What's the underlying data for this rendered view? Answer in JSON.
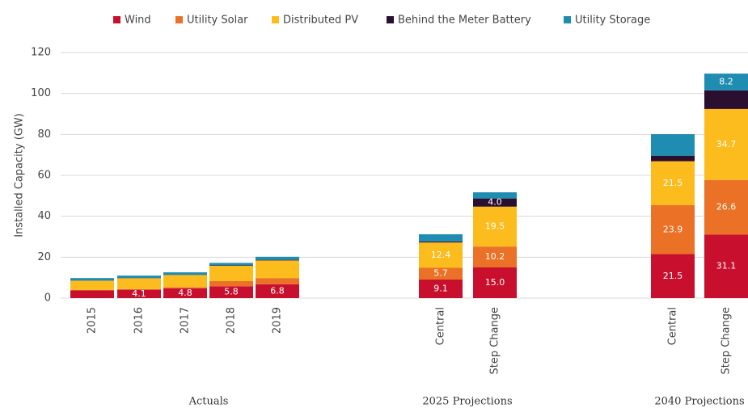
{
  "chart_data": {
    "type": "stacked_bar",
    "y_label": "Installed Capacity (GW)",
    "categories": [
      "2015",
      "2016",
      "2017",
      "2018",
      "2019",
      "Central",
      "Step Change",
      "Central",
      "Step Change"
    ],
    "group_labels": [
      "Actuals",
      "2025 Projections",
      "2040 Projections"
    ],
    "series": [
      {
        "name": "Wind",
        "color": "#c8102e",
        "values": [
          3.8,
          4.1,
          4.8,
          5.8,
          6.8,
          9.1,
          15.0,
          21.5,
          31.1
        ],
        "value_labels": [
          null,
          "4.1",
          "4.8",
          "5.8",
          "6.8",
          "9.1",
          "15.0",
          "21.5",
          "31.1"
        ]
      },
      {
        "name": "Utility Solar",
        "color": "#ea7125",
        "values": [
          0.2,
          0.3,
          0.5,
          2.5,
          3.0,
          5.7,
          10.2,
          23.9,
          26.6
        ],
        "value_labels": [
          null,
          null,
          null,
          null,
          null,
          "5.7",
          "10.2",
          "23.9",
          "26.6"
        ]
      },
      {
        "name": "Distributed PV",
        "color": "#fcbc1e",
        "values": [
          4.5,
          5.3,
          6.0,
          7.5,
          8.6,
          12.4,
          19.5,
          21.5,
          34.7
        ],
        "value_labels": [
          null,
          null,
          null,
          null,
          null,
          "12.4",
          "19.5",
          "21.5",
          "34.7"
        ]
      },
      {
        "name": "Behind the Meter Battery",
        "color": "#2b0f30",
        "values": [
          0.1,
          0.1,
          0.1,
          0.2,
          0.3,
          0.5,
          4.0,
          2.7,
          9.1
        ],
        "value_labels": [
          null,
          null,
          null,
          null,
          null,
          null,
          "4.0",
          null,
          null
        ]
      },
      {
        "name": "Utility Storage",
        "color": "#1e8db1",
        "values": [
          1.2,
          1.2,
          1.2,
          1.2,
          1.5,
          3.5,
          3.0,
          10.5,
          8.2
        ],
        "value_labels": [
          null,
          null,
          null,
          null,
          null,
          null,
          null,
          null,
          "8.2"
        ]
      }
    ],
    "ylim": [
      0,
      120
    ],
    "yticks": [
      0,
      20,
      40,
      60,
      80,
      100,
      120
    ],
    "grid": true,
    "legend": "top"
  }
}
